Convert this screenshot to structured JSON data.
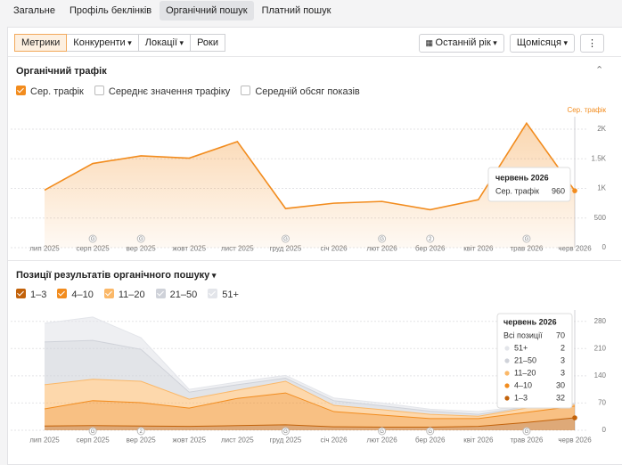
{
  "tabs": [
    "Загальне",
    "Профіль беклінків",
    "Органічний пошук",
    "Платний пошук"
  ],
  "active_tab": 2,
  "toolbar": {
    "left": [
      "Метрики",
      "Конкуренти",
      "Локації",
      "Роки"
    ],
    "active": 0,
    "dropdowns": [
      1,
      2
    ],
    "right": [
      "Останній рік",
      "Щомісяця"
    ]
  },
  "chart_data": [
    {
      "type": "area",
      "title": "Органічний трафік",
      "metrics": [
        {
          "label": "Сер. трафік",
          "checked": true
        },
        {
          "label": "Середнє значення трафіку",
          "checked": false
        },
        {
          "label": "Середній обсяг показів",
          "checked": false
        }
      ],
      "ylabel": "Сер. трафік",
      "categories": [
        "лип 2025",
        "серп 2025",
        "вер 2025",
        "жовт 2025",
        "лист 2025",
        "груд 2025",
        "січ 2026",
        "лют 2026",
        "бер 2026",
        "квіт 2026",
        "трав 2026",
        "черв 2026"
      ],
      "series": [
        {
          "name": "Сер. трафік",
          "color": "#f28c1e",
          "values": [
            970,
            1420,
            1550,
            1510,
            1790,
            660,
            750,
            780,
            640,
            810,
            2100,
            960
          ]
        }
      ],
      "ylim": [
        0,
        2150
      ],
      "yticks": [
        0,
        500,
        {
          "value": 1000,
          "label": "1K"
        },
        {
          "value": 1500,
          "label": "1.5K"
        },
        {
          "value": 2000,
          "label": "2K"
        }
      ],
      "grid": true,
      "annotations": [
        {
          "x": "серп 2025",
          "label": "G"
        },
        {
          "x": "вер 2025",
          "label": "G"
        },
        {
          "x": "груд 2025",
          "label": "G"
        },
        {
          "x": "лют 2026",
          "label": "G"
        },
        {
          "x": "бер 2026",
          "label": "2"
        },
        {
          "x": "трав 2026",
          "label": "G"
        }
      ],
      "tooltip": {
        "title": "червень 2026",
        "index": 11
      }
    },
    {
      "type": "stacked_area",
      "title": "Позиції результатів органічного пошуку",
      "categories": [
        "лип 2025",
        "серп 2025",
        "вер 2025",
        "жовт 2025",
        "лист 2025",
        "груд 2025",
        "січ 2026",
        "лют 2026",
        "бер 2026",
        "квіт 2026",
        "трав 2026",
        "черв 2026"
      ],
      "series": [
        {
          "name": "1–3",
          "color": "#c2620a",
          "values": [
            11,
            12,
            11,
            10,
            12,
            14,
            9,
            8,
            8,
            10,
            20,
            32
          ]
        },
        {
          "name": "4–10",
          "color": "#f28c1e",
          "values": [
            44,
            64,
            60,
            47,
            70,
            82,
            39,
            31,
            22,
            20,
            26,
            30
          ]
        },
        {
          "name": "11–20",
          "color": "#fbb868",
          "values": [
            62,
            55,
            55,
            23,
            21,
            30,
            16,
            14,
            11,
            6,
            11,
            3
          ]
        },
        {
          "name": "21–50",
          "color": "#cfd2d9",
          "values": [
            110,
            100,
            82,
            18,
            14,
            8,
            12,
            10,
            8,
            5,
            3,
            3
          ]
        },
        {
          "name": "51+",
          "color": "#e3e5ea",
          "values": [
            48,
            60,
            30,
            7,
            7,
            7,
            7,
            7,
            5,
            7,
            2,
            2
          ]
        }
      ],
      "ylim": [
        0,
        300
      ],
      "yticks": [
        0,
        70,
        140,
        210,
        280
      ],
      "grid": true,
      "annotations": [
        {
          "x": "серп 2025",
          "label": "G"
        },
        {
          "x": "вер 2025",
          "label": "2"
        },
        {
          "x": "груд 2025",
          "label": "G"
        },
        {
          "x": "лют 2026",
          "label": "G"
        },
        {
          "x": "бер 2026",
          "label": "G"
        },
        {
          "x": "трав 2026",
          "label": "G"
        }
      ],
      "tooltip": {
        "title": "червень 2026",
        "index": 11,
        "total_label": "Всі позиції",
        "total": 70
      }
    }
  ]
}
